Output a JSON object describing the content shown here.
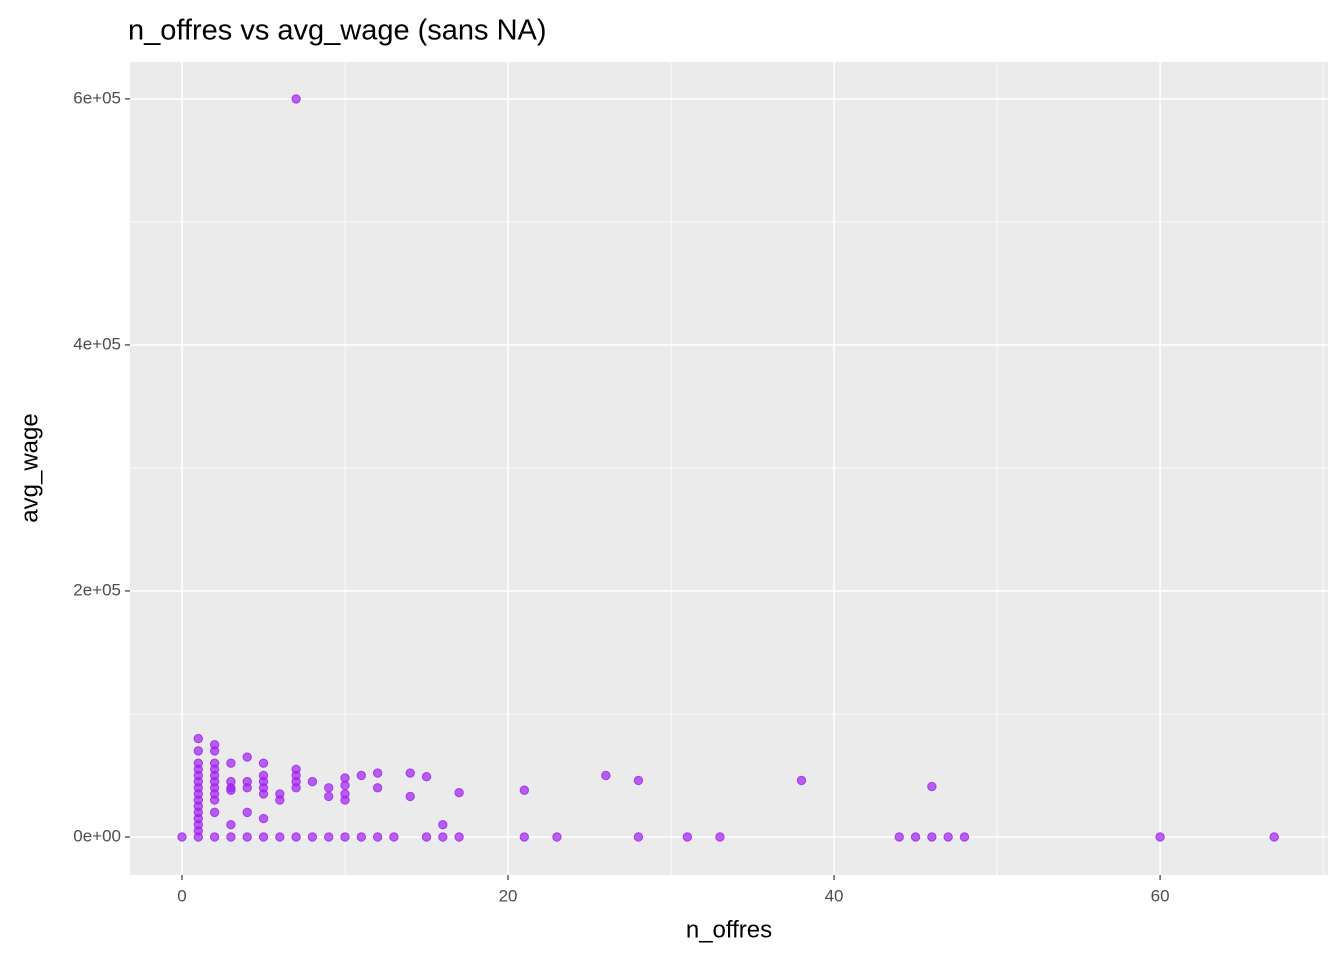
{
  "chart_data": {
    "type": "scatter",
    "title": "n_offres vs avg_wage (sans NA)",
    "x_label": "n_offres",
    "y_label": "avg_wage",
    "xlim": [
      -3.19,
      70.3
    ],
    "ylim": [
      -30900,
      630000
    ],
    "xticks": [
      0,
      20,
      40,
      60
    ],
    "yticks": [
      {
        "value": 0,
        "label": "0e+00"
      },
      {
        "value": 200000,
        "label": "2e+05"
      },
      {
        "value": 400000,
        "label": "4e+05"
      },
      {
        "value": 600000,
        "label": "6e+05"
      }
    ],
    "x_minor_breaks": [
      10,
      30,
      50,
      70
    ],
    "y_minor_breaks": [
      100000,
      300000,
      500000
    ],
    "grid": true,
    "series": [
      {
        "color": "#a020f0",
        "x": [
          0,
          1,
          2,
          3,
          4,
          5,
          6,
          7,
          8,
          9,
          10,
          11,
          12,
          13,
          15,
          16,
          17,
          21,
          23,
          28,
          31,
          33,
          44,
          45,
          46,
          47,
          48,
          60,
          67,
          7,
          1,
          1,
          1,
          1,
          1,
          1,
          1,
          1,
          1,
          1,
          1,
          1,
          1,
          1,
          2,
          2,
          2,
          2,
          2,
          2,
          2,
          2,
          2,
          2,
          3,
          3,
          3,
          3,
          3,
          4,
          4,
          4,
          4,
          5,
          5,
          5,
          5,
          5,
          5,
          6,
          6,
          7,
          7,
          7,
          7,
          8,
          9,
          9,
          10,
          10,
          10,
          10,
          11,
          12,
          12,
          14,
          14,
          15,
          16,
          17,
          21,
          26,
          28,
          38,
          46
        ],
        "y": [
          0,
          0,
          0,
          0,
          0,
          0,
          0,
          0,
          0,
          0,
          0,
          0,
          0,
          0,
          0,
          0,
          0,
          0,
          0,
          0,
          0,
          0,
          0,
          0,
          0,
          0,
          0,
          0,
          0,
          600000,
          80000,
          70000,
          60000,
          55000,
          50000,
          45000,
          40000,
          35000,
          30000,
          25000,
          20000,
          15000,
          10000,
          5000,
          75000,
          70000,
          60000,
          55000,
          50000,
          45000,
          40000,
          35000,
          30000,
          20000,
          60000,
          45000,
          40000,
          38000,
          10000,
          65000,
          45000,
          40000,
          20000,
          60000,
          50000,
          45000,
          40000,
          35000,
          15000,
          35000,
          30000,
          55000,
          50000,
          45000,
          40000,
          45000,
          40000,
          33000,
          48000,
          42000,
          35000,
          30000,
          50000,
          52000,
          40000,
          52000,
          33000,
          49000,
          10000,
          36000,
          38000,
          50000,
          46000,
          46000,
          41000
        ]
      }
    ]
  }
}
